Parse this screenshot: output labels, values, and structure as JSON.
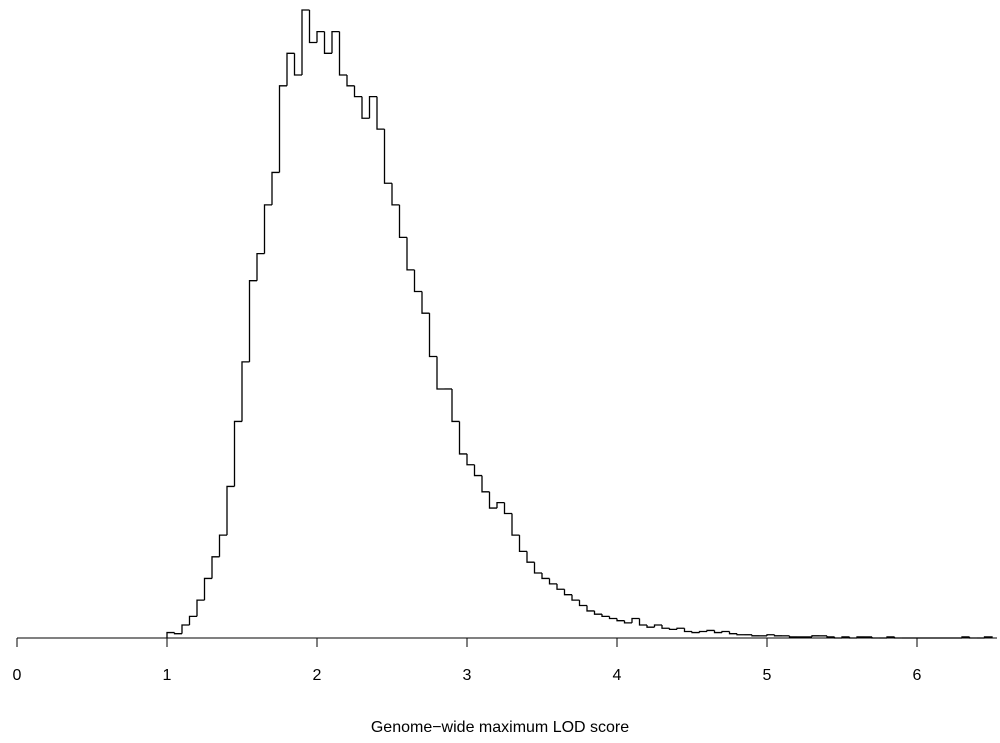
{
  "chart_data": {
    "type": "histogram",
    "xlabel": "Genome−wide maximum LOD score",
    "bins": [
      1.0,
      1.05,
      1.1,
      1.15,
      1.2,
      1.25,
      1.3,
      1.35,
      1.4,
      1.45,
      1.5,
      1.55,
      1.6,
      1.65,
      1.7,
      1.75,
      1.8,
      1.85,
      1.9,
      1.95,
      2.0,
      2.05,
      2.1,
      2.15,
      2.2,
      2.25,
      2.3,
      2.35,
      2.4,
      2.45,
      2.5,
      2.55,
      2.6,
      2.65,
      2.7,
      2.75,
      2.8,
      2.85,
      2.9,
      2.95,
      3.0,
      3.05,
      3.1,
      3.15,
      3.2,
      3.25,
      3.3,
      3.35,
      3.4,
      3.45,
      3.5,
      3.55,
      3.6,
      3.65,
      3.7,
      3.75,
      3.8,
      3.85,
      3.9,
      3.95,
      4.0,
      4.05,
      4.1,
      4.15,
      4.2,
      4.25,
      4.3,
      4.35,
      4.4,
      4.45,
      4.5,
      4.55,
      4.6,
      4.65,
      4.7,
      4.75,
      4.8,
      4.85,
      4.9,
      4.95,
      5.0,
      5.05,
      5.1,
      5.15,
      5.2,
      5.25,
      5.3,
      5.35,
      5.4,
      5.45,
      5.5,
      5.55,
      5.6,
      5.65,
      5.7,
      5.75,
      5.8,
      5.85,
      5.9,
      5.95,
      6.0,
      6.05,
      6.1,
      6.15,
      6.2,
      6.25,
      6.3,
      6.35,
      6.4,
      6.45,
      6.5
    ],
    "values": [
      5,
      4,
      12,
      20,
      35,
      55,
      75,
      95,
      140,
      200,
      255,
      330,
      355,
      400,
      430,
      510,
      540,
      520,
      580,
      550,
      560,
      540,
      560,
      520,
      510,
      500,
      480,
      500,
      470,
      420,
      400,
      370,
      340,
      320,
      300,
      260,
      230,
      230,
      200,
      170,
      160,
      150,
      135,
      120,
      125,
      115,
      95,
      80,
      70,
      60,
      55,
      50,
      45,
      40,
      35,
      30,
      25,
      22,
      20,
      18,
      16,
      14,
      18,
      12,
      10,
      12,
      9,
      8,
      9,
      6,
      5,
      6,
      7,
      5,
      6,
      4,
      3,
      3,
      2,
      2,
      3,
      2,
      2,
      1,
      1,
      1,
      2,
      2,
      1,
      0,
      1,
      0,
      1,
      1,
      0,
      0,
      1,
      0,
      0,
      0,
      0,
      0,
      0,
      0,
      0,
      0,
      1,
      0,
      0,
      1
    ],
    "color": "#000000",
    "xlim": [
      0,
      6.5
    ],
    "xticks": [
      0,
      1,
      2,
      3,
      4,
      5,
      6
    ]
  }
}
